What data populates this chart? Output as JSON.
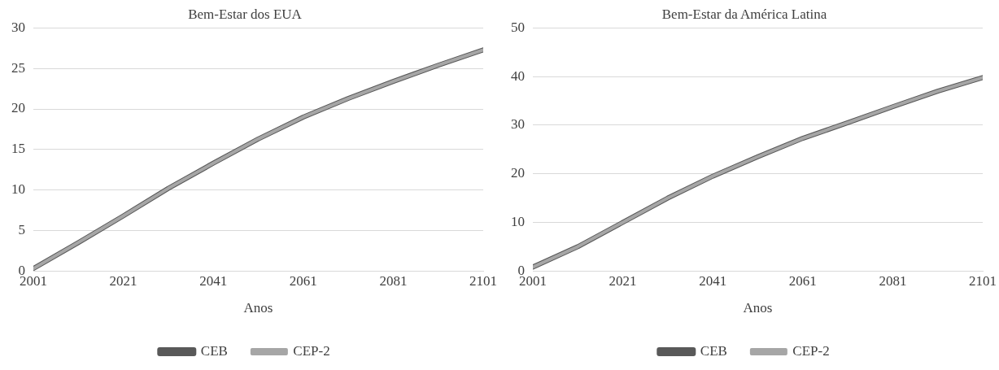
{
  "chart_data": [
    {
      "type": "line",
      "title": "Bem-Estar dos EUA",
      "xlabel": "Anos",
      "x": [
        2001,
        2011,
        2021,
        2031,
        2041,
        2051,
        2061,
        2071,
        2081,
        2091,
        2101
      ],
      "series": [
        {
          "name": "CEB",
          "color": "#595959",
          "values": [
            0.3,
            3.5,
            6.8,
            10.2,
            13.3,
            16.3,
            19.0,
            21.3,
            23.4,
            25.4,
            27.3
          ]
        },
        {
          "name": "CEP-2",
          "color": "#a6a6a6",
          "values": [
            0.3,
            3.5,
            6.8,
            10.2,
            13.3,
            16.3,
            19.0,
            21.3,
            23.4,
            25.4,
            27.3
          ]
        }
      ],
      "xlim": [
        2001,
        2101
      ],
      "xticks": [
        2001,
        2021,
        2041,
        2061,
        2081,
        2101
      ],
      "ylim": [
        0,
        30
      ],
      "yticks": [
        0,
        5,
        10,
        15,
        20,
        25,
        30
      ],
      "grid": "y",
      "legend": "bottom",
      "marker": "none"
    },
    {
      "type": "line",
      "title": "Bem-Estar da América Latina",
      "xlabel": "Anos",
      "x": [
        2001,
        2011,
        2021,
        2031,
        2041,
        2051,
        2061,
        2071,
        2081,
        2091,
        2101
      ],
      "series": [
        {
          "name": "CEB",
          "color": "#595959",
          "values": [
            0.8,
            5.0,
            10.0,
            15.0,
            19.5,
            23.5,
            27.3,
            30.5,
            33.8,
            37.0,
            39.8
          ]
        },
        {
          "name": "CEP-2",
          "color": "#a6a6a6",
          "values": [
            0.8,
            5.0,
            10.0,
            15.0,
            19.5,
            23.5,
            27.3,
            30.5,
            33.8,
            37.0,
            39.8
          ]
        }
      ],
      "xlim": [
        2001,
        2101
      ],
      "xticks": [
        2001,
        2021,
        2041,
        2061,
        2081,
        2101
      ],
      "ylim": [
        0,
        50
      ],
      "yticks": [
        0,
        10,
        20,
        30,
        40,
        50
      ],
      "grid": "y",
      "legend": "bottom",
      "marker": "none"
    }
  ]
}
